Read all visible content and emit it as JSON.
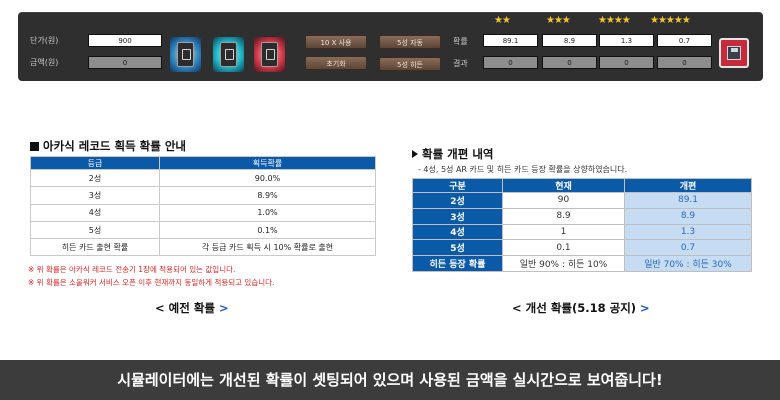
{
  "simulator": {
    "labels": {
      "unit_price": "단가(원)",
      "amount": "금액(원)",
      "probability": "확률",
      "result": "결과"
    },
    "unit_price_value": "900",
    "amount_value": "0",
    "buttons": {
      "use10": "10 X 사용",
      "reset": "초기화",
      "auto5": "5성 자동",
      "hidden5": "5성 히든"
    },
    "stars": [
      {
        "count": 2,
        "text": "★★"
      },
      {
        "count": 3,
        "text": "★★★"
      },
      {
        "count": 4,
        "text": "★★★★"
      },
      {
        "count": 5,
        "text": "★★★★★"
      }
    ],
    "probabilities": [
      "89.1",
      "8.9",
      "1.3",
      "0.7"
    ],
    "results": [
      "0",
      "0",
      "0",
      "0"
    ]
  },
  "old_rates": {
    "title": "아카식 레코드 획득 확률 안내",
    "headers": [
      "등급",
      "획득확률"
    ],
    "rows": [
      [
        "2성",
        "90.0%"
      ],
      [
        "3성",
        "8.9%"
      ],
      [
        "4성",
        "1.0%"
      ],
      [
        "5성",
        "0.1%"
      ],
      [
        "히든 카드 출현 확률",
        "각 등급 카드 획득 시 10% 확률로 출현"
      ]
    ],
    "notes": [
      "※ 위 확률은 아카식 레코드 전송기 1장에 적용되어 있는 값입니다.",
      "※ 위 확률은 소울워커 서비스 오픈 이후 현재까지 동일하게 적용되고 있습니다."
    ],
    "caption": {
      "left": "<",
      "text": "예전 확률",
      "right": ">"
    }
  },
  "new_rates": {
    "title": "확률 개편 내역",
    "subnote": "- 4성, 5성 AR 카드 및 히든 카드 등장 확률을 상향하였습니다.",
    "headers": [
      "구분",
      "현재",
      "개편"
    ],
    "rows": [
      [
        "2성",
        "90",
        "89.1"
      ],
      [
        "3성",
        "8.9",
        "8.9"
      ],
      [
        "4성",
        "1",
        "1.3"
      ],
      [
        "5성",
        "0.1",
        "0.7"
      ],
      [
        "히든 등장 확률",
        "일반 90% : 히든 10%",
        "일반 70% : 히든 30%"
      ]
    ],
    "caption": {
      "left": "<",
      "text": "개선 확률(5.18 공지)",
      "right": ">"
    }
  },
  "banner": "시뮬레이터에는 개선된 확률이 셋팅되어 있으며 사용된 금액을 실시간으로 보여줍니다!",
  "colors": {
    "header_blue": "#0b5aa8",
    "improved_cell": "#c5dcf3",
    "note_red": "#d92626",
    "star_gold": "#f2c230"
  }
}
